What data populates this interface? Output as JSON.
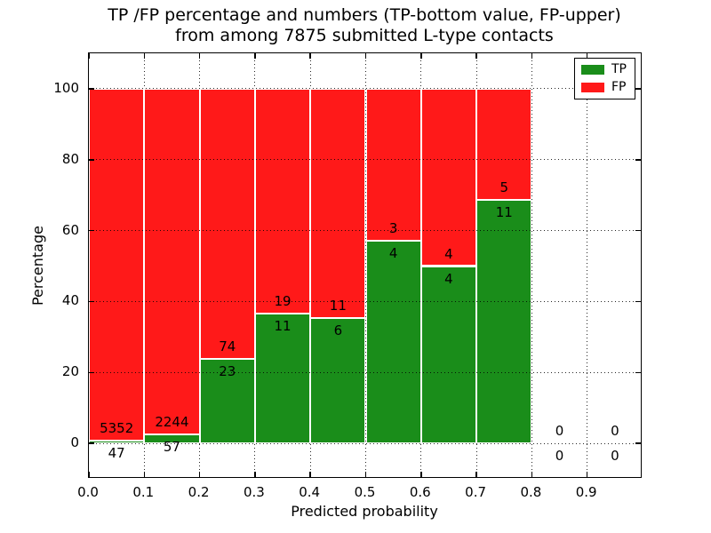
{
  "figure": {
    "title_line1": "TP /FP percentage and numbers (TP-bottom value, FP-upper)",
    "title_line2": "from among 7875 submitted L-type contacts",
    "xlabel": "Predicted probability",
    "ylabel": "Percentage",
    "background_color": "#ffffff",
    "spine_color": "#000000",
    "grid_color": "#000000"
  },
  "legend": {
    "position": "upper right",
    "items": [
      {
        "label": "TP",
        "color": "#1a8d1a"
      },
      {
        "label": "FP",
        "color": "#ff1919"
      }
    ]
  },
  "chart_data": {
    "type": "bar",
    "stacked": true,
    "title": "TP /FP percentage and numbers (TP-bottom value, FP-upper) from among 7875 submitted L-type contacts",
    "xlabel": "Predicted probability",
    "ylabel": "Percentage",
    "xlim": [
      0.0,
      1.0
    ],
    "ylim": [
      -10,
      110
    ],
    "grid": true,
    "total_contacts": 7875,
    "x_ticks": [
      {
        "value": 0.0,
        "label": "0.0"
      },
      {
        "value": 0.1,
        "label": "0.1"
      },
      {
        "value": 0.2,
        "label": "0.2"
      },
      {
        "value": 0.3,
        "label": "0.3"
      },
      {
        "value": 0.4,
        "label": "0.4"
      },
      {
        "value": 0.5,
        "label": "0.5"
      },
      {
        "value": 0.6,
        "label": "0.6"
      },
      {
        "value": 0.7,
        "label": "0.7"
      },
      {
        "value": 0.8,
        "label": "0.8"
      },
      {
        "value": 0.9,
        "label": "0.9"
      }
    ],
    "y_ticks": [
      {
        "value": 0,
        "label": "0"
      },
      {
        "value": 20,
        "label": "20"
      },
      {
        "value": 40,
        "label": "40"
      },
      {
        "value": 60,
        "label": "60"
      },
      {
        "value": 80,
        "label": "80"
      },
      {
        "value": 100,
        "label": "100"
      }
    ],
    "series": [
      {
        "name": "TP",
        "color": "#1a8d1a",
        "values_pct": [
          0.87,
          2.48,
          23.71,
          36.67,
          35.29,
          57.14,
          50.0,
          68.75,
          0,
          0
        ]
      },
      {
        "name": "FP",
        "color": "#ff1919",
        "values_pct": [
          99.13,
          97.52,
          76.29,
          63.33,
          64.71,
          42.86,
          50.0,
          31.25,
          0,
          0
        ]
      }
    ],
    "bins": [
      {
        "x0": 0.0,
        "x1": 0.1,
        "tp_count": 47,
        "fp_count": 5352,
        "tp_pct": 0.87
      },
      {
        "x0": 0.1,
        "x1": 0.2,
        "tp_count": 57,
        "fp_count": 2244,
        "tp_pct": 2.48
      },
      {
        "x0": 0.2,
        "x1": 0.3,
        "tp_count": 23,
        "fp_count": 74,
        "tp_pct": 23.71
      },
      {
        "x0": 0.3,
        "x1": 0.4,
        "tp_count": 11,
        "fp_count": 19,
        "tp_pct": 36.67
      },
      {
        "x0": 0.4,
        "x1": 0.5,
        "tp_count": 6,
        "fp_count": 11,
        "tp_pct": 35.29
      },
      {
        "x0": 0.5,
        "x1": 0.6,
        "tp_count": 4,
        "fp_count": 3,
        "tp_pct": 57.14
      },
      {
        "x0": 0.6,
        "x1": 0.7,
        "tp_count": 4,
        "fp_count": 4,
        "tp_pct": 50.0
      },
      {
        "x0": 0.7,
        "x1": 0.8,
        "tp_count": 11,
        "fp_count": 5,
        "tp_pct": 68.75
      },
      {
        "x0": 0.8,
        "x1": 0.9,
        "tp_count": 0,
        "fp_count": 0,
        "tp_pct": 0
      },
      {
        "x0": 0.9,
        "x1": 1.0,
        "tp_count": 0,
        "fp_count": 0,
        "tp_pct": 0
      }
    ]
  }
}
